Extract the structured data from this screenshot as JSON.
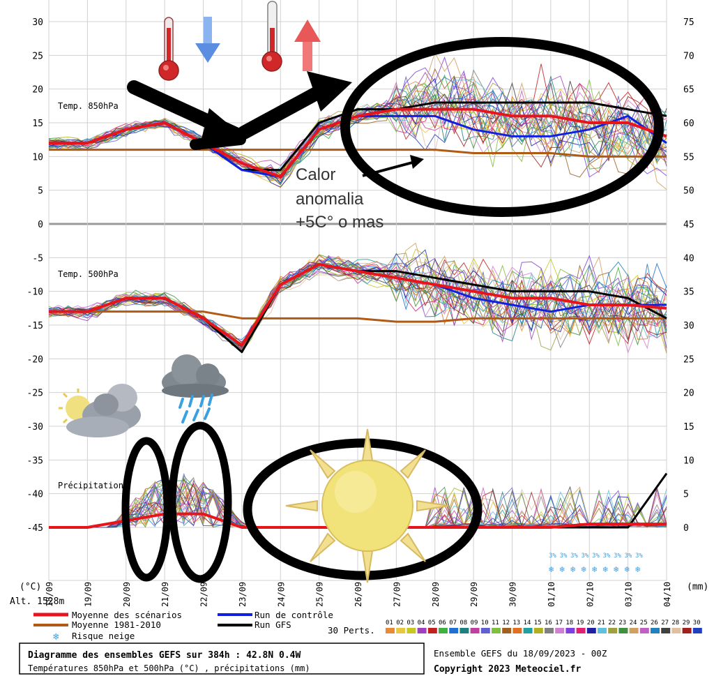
{
  "chart_data": {
    "type": "line",
    "x_dates": [
      "18/09",
      "19/09",
      "20/09",
      "21/09",
      "22/09",
      "23/09",
      "24/09",
      "25/09",
      "26/09",
      "27/09",
      "28/09",
      "29/09",
      "30/09",
      "01/10",
      "02/10",
      "03/10",
      "04/10"
    ],
    "left_axis_unit": "(°C)",
    "right_axis_unit": "(mm)",
    "altitude_label": "Alt. 1528m",
    "left_ticks": [
      30,
      25,
      20,
      15,
      10,
      5,
      0,
      -5,
      -10,
      -15,
      -20,
      -25,
      -30,
      -35,
      -40,
      -45
    ],
    "right_ticks": [
      75,
      70,
      65,
      60,
      55,
      50,
      45,
      40,
      35,
      30,
      25,
      20,
      15,
      10,
      5,
      0
    ],
    "panels": {
      "t850": "Temp. 850hPa",
      "t500": "Temp. 500hPa",
      "precip": "Précipitations"
    },
    "series": [
      {
        "name": "Moyenne des scénarios",
        "panel": "t850",
        "color": "#e8141c",
        "values": [
          12,
          12,
          14,
          15,
          12,
          9,
          7,
          14,
          16,
          17,
          17,
          17,
          16,
          16,
          15,
          15,
          13
        ]
      },
      {
        "name": "Moyenne 1981-2010",
        "panel": "t850",
        "color": "#b05a14",
        "values": [
          11,
          11,
          11,
          11,
          11,
          11,
          11,
          11,
          11,
          11,
          11,
          10.5,
          10.5,
          10.5,
          10,
          10,
          10
        ]
      },
      {
        "name": "Run de contrôle",
        "panel": "t850",
        "color": "#1020e0",
        "values": [
          12,
          12,
          14,
          15,
          12,
          8,
          7,
          14,
          16,
          16,
          16,
          14,
          13,
          13,
          14,
          16,
          12
        ]
      },
      {
        "name": "Run GFS",
        "panel": "t850",
        "color": "#000000",
        "values": [
          12,
          12,
          14,
          15,
          12,
          8,
          8,
          15,
          17,
          17,
          18,
          18,
          18,
          18,
          18,
          17,
          16
        ]
      },
      {
        "name": "Moyenne des scénarios",
        "panel": "t500",
        "color": "#e8141c",
        "values": [
          -13,
          -13,
          -11,
          -11,
          -14,
          -18,
          -9,
          -6,
          -7,
          -8,
          -9,
          -10,
          -11,
          -11,
          -12,
          -12,
          -12.5
        ]
      },
      {
        "name": "Moyenne 1981-2010",
        "panel": "t500",
        "color": "#b05a14",
        "values": [
          -13,
          -13,
          -13,
          -13,
          -13,
          -14,
          -14,
          -14,
          -14,
          -14.5,
          -14.5,
          -14,
          -14,
          -14,
          -14,
          -14,
          -14
        ]
      },
      {
        "name": "Run de contrôle",
        "panel": "t500",
        "color": "#1020e0",
        "values": [
          -13,
          -13,
          -11,
          -11,
          -14,
          -18,
          -9,
          -6,
          -7,
          -8,
          -9,
          -11,
          -12,
          -13,
          -12,
          -12,
          -12
        ]
      },
      {
        "name": "Run GFS",
        "panel": "t500",
        "color": "#000000",
        "values": [
          -13,
          -13,
          -11,
          -11,
          -14,
          -19,
          -9,
          -6,
          -7,
          -7,
          -8,
          -9,
          -10,
          -10,
          -10,
          -11,
          -14
        ]
      },
      {
        "name": "Moyenne des scénarios",
        "panel": "precip",
        "color": "#e8141c",
        "values": [
          0,
          0,
          1,
          2,
          2,
          0,
          0,
          0,
          0,
          0,
          0,
          0,
          0,
          0,
          0.5,
          0.5,
          0.5
        ]
      },
      {
        "name": "Run GFS",
        "panel": "precip",
        "color": "#000000",
        "values": [
          0,
          0,
          1,
          2,
          2,
          0,
          0,
          0,
          0,
          0,
          0,
          0,
          0,
          0,
          0,
          0,
          8
        ]
      }
    ]
  },
  "annotation": {
    "line1": "Calor",
    "line2": "anomalia",
    "line3": "+5C° o mas"
  },
  "legend": {
    "mean": "Moyenne des scénarios",
    "clim": "Moyenne 1981-2010",
    "snow": "Risque neige",
    "control": "Run de contrôle",
    "gfs": "Run GFS",
    "perts": "30 Perts.",
    "pert_numbers": [
      "01",
      "02",
      "03",
      "04",
      "05",
      "06",
      "07",
      "08",
      "09",
      "10",
      "11",
      "12",
      "13",
      "14",
      "15",
      "16",
      "17",
      "18",
      "19",
      "20",
      "21",
      "22",
      "23",
      "24",
      "25",
      "26",
      "27",
      "28",
      "29",
      "30"
    ],
    "pert_colors": [
      "#e88a38",
      "#e8c840",
      "#c8c820",
      "#a040c0",
      "#c02020",
      "#40b040",
      "#2070d0",
      "#208080",
      "#c040a0",
      "#6060d0",
      "#80c040",
      "#a06020",
      "#e07020",
      "#20a0a0",
      "#b0b020",
      "#808080",
      "#d080d0",
      "#8040e0",
      "#e02070",
      "#2020a0",
      "#60c0e0",
      "#a0a040",
      "#409040",
      "#d0a060",
      "#c060c0",
      "#2080c0",
      "#404040",
      "#e0c0a0",
      "#a02020",
      "#2040c0"
    ],
    "colors": {
      "mean": "#e8141c",
      "clim": "#b05a14",
      "control": "#1020e0",
      "gfs": "#000000"
    }
  },
  "footer": {
    "title": "Diagramme des ensembles GEFS sur 384h : 42.8N 0.4W",
    "subtitle": "Températures 850hPa et 500hPa (°C) , précipitations (mm)",
    "run": "Ensemble GEFS du 18/09/2023 - 00Z",
    "copyright": "Copyright 2023 Meteociel.fr"
  }
}
